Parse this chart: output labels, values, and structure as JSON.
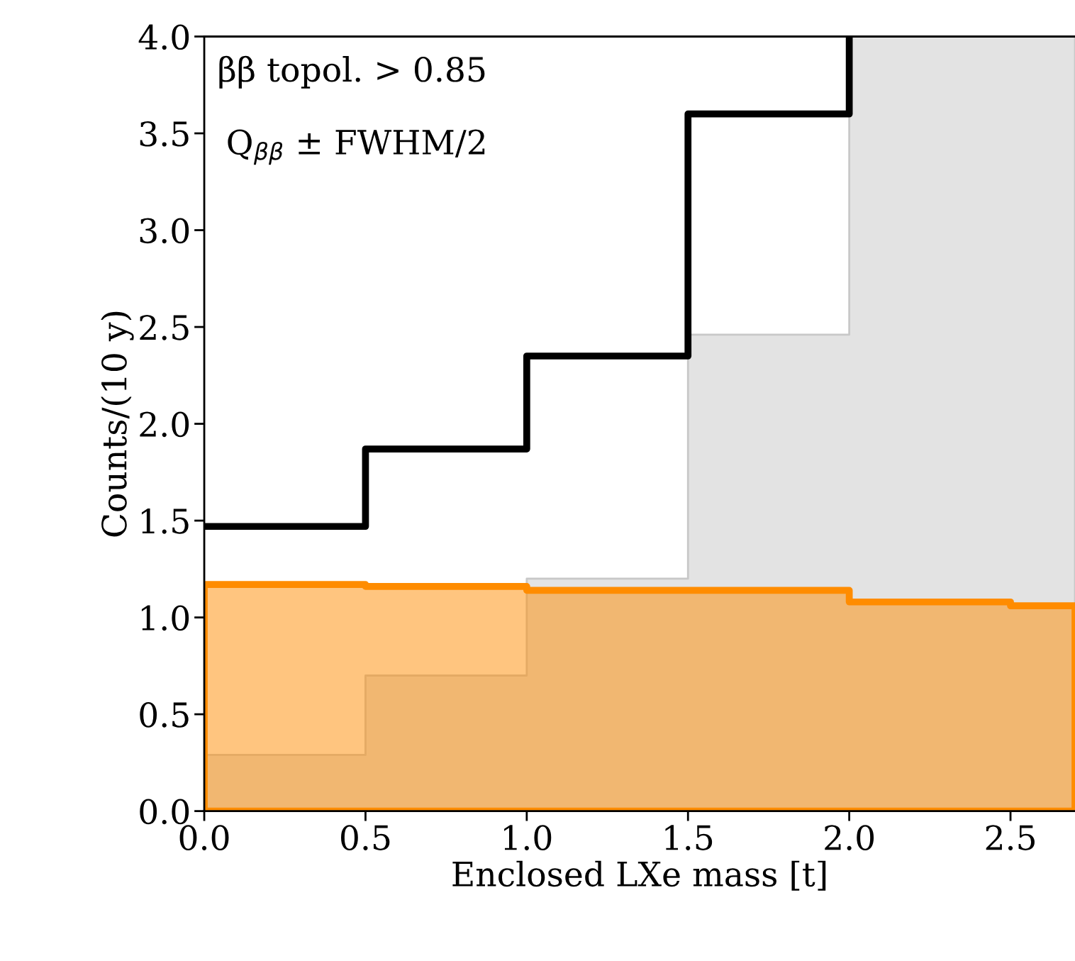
{
  "chart_data": {
    "type": "step",
    "xlabel": "Enclosed LXe mass [t]",
    "ylabel": "Counts/(10 y)",
    "annotations": [
      "ββ topol. > 0.85",
      "Q$_{ββ}$ ± FWHM/2"
    ],
    "x": [
      0,
      0.5,
      1.0,
      1.5,
      2.0,
      2.5,
      2.7
    ],
    "series": [
      {
        "type": "area",
        "color": "#c8c8c8",
        "values": [
          0.29,
          0.7,
          1.2,
          2.46,
          4.0,
          4.0,
          4.0
        ]
      },
      {
        "type": "area",
        "color": "#ff8c00",
        "values": [
          1.17,
          1.16,
          1.14,
          1.14,
          1.08,
          1.06,
          1.06
        ]
      },
      {
        "color": "#000000",
        "values": [
          1.47,
          1.87,
          2.35,
          3.6,
          4.0,
          null,
          null
        ]
      }
    ],
    "xlim": [
      0,
      2.7
    ],
    "ylim": [
      0,
      4.0
    ],
    "xticks": [
      {
        "value": 0,
        "label": "0.0"
      },
      {
        "value": 0.5,
        "label": "0.5"
      },
      {
        "value": 1.0,
        "label": "1.0"
      },
      {
        "value": 1.5,
        "label": "1.5"
      },
      {
        "value": 2.0,
        "label": "2.0"
      },
      {
        "value": 2.5,
        "label": "2.5"
      }
    ],
    "yticks": [
      {
        "value": 0,
        "label": "0.0"
      },
      {
        "value": 0.5,
        "label": "0.5"
      },
      {
        "value": 1.0,
        "label": "1.0"
      },
      {
        "value": 1.5,
        "label": "1.5"
      },
      {
        "value": 2.0,
        "label": "2.0"
      },
      {
        "value": 2.5,
        "label": "2.5"
      },
      {
        "value": 3.0,
        "label": "3.0"
      },
      {
        "value": 3.5,
        "label": "3.5"
      },
      {
        "value": 4.0,
        "label": "4.0"
      }
    ],
    "grid": false
  }
}
